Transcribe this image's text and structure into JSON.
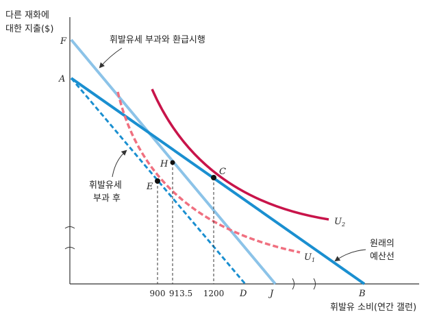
{
  "y_axis_label": [
    "다른 재화에",
    "대한 지출($)"
  ],
  "x_axis_label": "휘발유 소비(연간 갤런)",
  "points": {
    "F": "F",
    "A": "A",
    "B": "B",
    "C": "C",
    "D": "D",
    "E": "E",
    "H": "H",
    "J": "J",
    "U1_main": "U",
    "U1_sub": "1",
    "U2_main": "U",
    "U2_sub": "2"
  },
  "x_ticks": [
    "900",
    "913.5",
    "1200"
  ],
  "annotations": {
    "rebate_line": "휘발유세 부과와 환급시행",
    "tax_line": [
      "휘발유세",
      "부과 후"
    ],
    "original_line": [
      "원래의",
      "예산선"
    ]
  },
  "colors": {
    "original_budget": "#1a8fd0",
    "rebate_budget": "#8cc3e8",
    "tax_budget": "#1a8fd0",
    "U1": "#f07080",
    "U2": "#c8144a",
    "axis": "#333333"
  }
}
